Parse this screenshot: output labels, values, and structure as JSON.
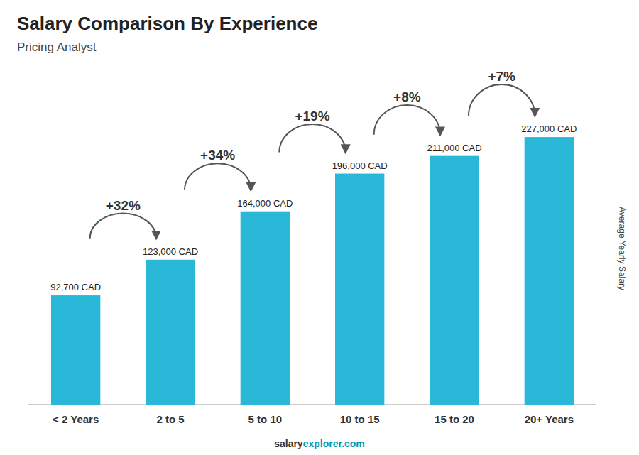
{
  "chart_data": {
    "type": "bar",
    "title": "Salary Comparison By Experience",
    "subtitle": "Pricing Analyst",
    "ylabel": "Average Yearly Salary",
    "categories": [
      "< 2 Years",
      "2 to 5",
      "5 to 10",
      "10 to 15",
      "15 to 20",
      "20+ Years"
    ],
    "values": [
      92700,
      123000,
      164000,
      196000,
      211000,
      227000
    ],
    "value_labels": [
      "92,700 CAD",
      "123,000 CAD",
      "164,000 CAD",
      "196,000 CAD",
      "211,000 CAD",
      "227,000 CAD"
    ],
    "data_labels": true,
    "annotations": [
      "+32%",
      "+34%",
      "+19%",
      "+8%",
      "+7%"
    ],
    "footer": [
      "salary",
      "explorer.com"
    ],
    "color": "#29b8d8",
    "ylim": [
      0,
      265000
    ],
    "tick_labels": "x",
    "grid": false
  }
}
